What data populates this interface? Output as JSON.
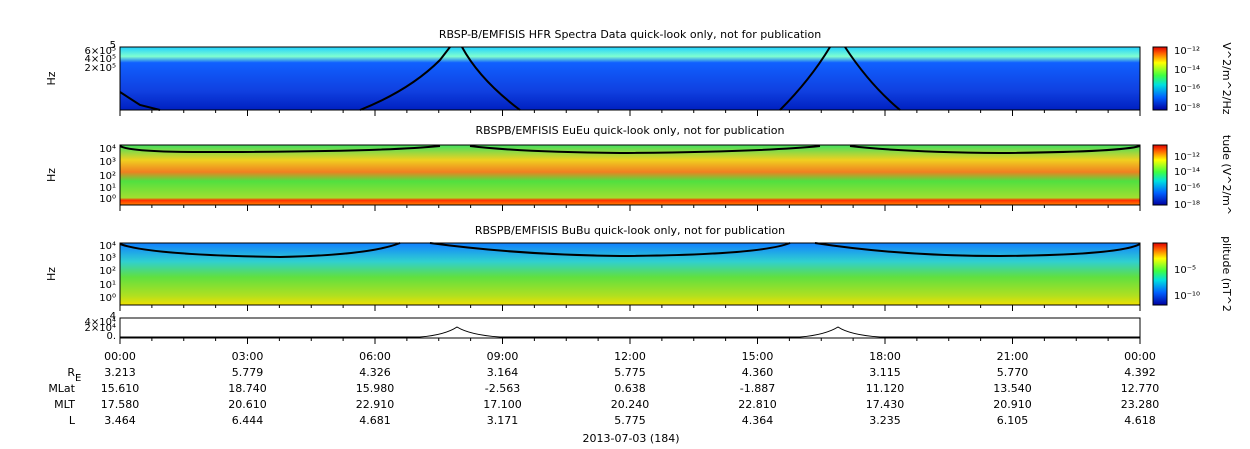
{
  "panels": [
    {
      "title": "RBSP-B/EMFISIS  HFR Spectra Data quick-look only, not for publication",
      "ylabel": "Hz",
      "yticks": [
        "5",
        "6×10⁵",
        "4×10⁵",
        "2×10⁵"
      ],
      "colorbar_label": "V^2/m^2/Hz",
      "colorbar_ticks": [
        "10⁻¹²",
        "10⁻¹⁴",
        "10⁻¹⁶",
        "10⁻¹⁸"
      ]
    },
    {
      "title": "RBSPB/EMFISIS  EuEu quick-look only, not for publication",
      "ylabel": "Hz",
      "yticks": [
        "10⁴",
        "10³",
        "10²",
        "10¹",
        "10⁰"
      ],
      "colorbar_label": "tude (V^2/m^",
      "colorbar_ticks": [
        "10⁻¹²",
        "10⁻¹⁴",
        "10⁻¹⁶",
        "10⁻¹⁸"
      ]
    },
    {
      "title": "RBSPB/EMFISIS  BuBu quick-look only, not for publication",
      "ylabel": "Hz",
      "yticks": [
        "10⁴",
        "10³",
        "10²",
        "10¹",
        "10⁰"
      ],
      "colorbar_label": "plitude (nT^2",
      "colorbar_ticks": [
        "10⁻⁵",
        "10⁻¹⁰"
      ]
    },
    {
      "yticks": [
        "4",
        "4×10⁴",
        "2×10⁴",
        "0."
      ]
    }
  ],
  "time_axis": {
    "ticks": [
      "00:00",
      "03:00",
      "06:00",
      "09:00",
      "12:00",
      "15:00",
      "18:00",
      "21:00",
      "00:00"
    ],
    "rows": [
      {
        "label": "R",
        "sub": "E",
        "values": [
          "3.213",
          "5.779",
          "4.326",
          "3.164",
          "5.775",
          "4.360",
          "3.115",
          "5.770",
          "4.392"
        ]
      },
      {
        "label": "MLat",
        "values": [
          "15.610",
          "18.740",
          "15.980",
          "-2.563",
          "0.638",
          "-1.887",
          "11.120",
          "13.540",
          "12.770"
        ]
      },
      {
        "label": "MLT",
        "values": [
          "17.580",
          "20.610",
          "22.910",
          "17.100",
          "20.240",
          "22.810",
          "17.430",
          "20.910",
          "23.280"
        ]
      },
      {
        "label": "L",
        "values": [
          "3.464",
          "6.444",
          "4.681",
          "3.171",
          "5.775",
          "4.364",
          "3.235",
          "6.105",
          "4.618"
        ]
      }
    ],
    "date": "2013-07-03 (184)"
  }
}
